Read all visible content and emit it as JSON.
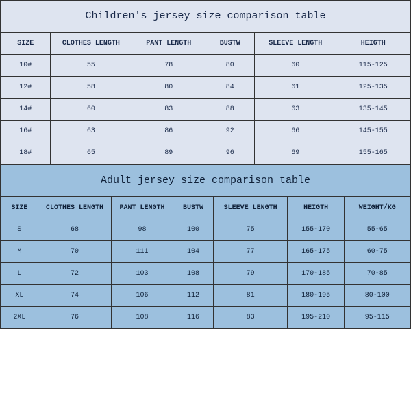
{
  "children": {
    "title": "Children's jersey size comparison table",
    "background_color": "#dee4f0",
    "text_color": "#1a2a4a",
    "columns": [
      "SIZE",
      "CLOTHES LENGTH",
      "PANT LENGTH",
      "BUSTW",
      "SLEEVE LENGTH",
      "HEIGTH"
    ],
    "col_widths_pct": [
      12,
      20,
      18,
      12,
      20,
      18
    ],
    "rows": [
      [
        "10#",
        "55",
        "78",
        "80",
        "60",
        "115-125"
      ],
      [
        "12#",
        "58",
        "80",
        "84",
        "61",
        "125-135"
      ],
      [
        "14#",
        "60",
        "83",
        "88",
        "63",
        "135-145"
      ],
      [
        "16#",
        "63",
        "86",
        "92",
        "66",
        "145-155"
      ],
      [
        "18#",
        "65",
        "89",
        "96",
        "69",
        "155-165"
      ]
    ]
  },
  "adult": {
    "title": "Adult jersey size comparison table",
    "background_color": "#9cc0de",
    "text_color": "#0f2038",
    "columns": [
      "SIZE",
      "CLOTHES LENGTH",
      "PANT LENGTH",
      "BUSTW",
      "SLEEVE LENGTH",
      "HEIGTH",
      "WEIGHT/KG"
    ],
    "col_widths_pct": [
      9,
      18,
      15,
      10,
      18,
      14,
      16
    ],
    "rows": [
      [
        "S",
        "68",
        "98",
        "100",
        "75",
        "155-170",
        "55-65"
      ],
      [
        "M",
        "70",
        "111",
        "104",
        "77",
        "165-175",
        "60-75"
      ],
      [
        "L",
        "72",
        "103",
        "108",
        "79",
        "170-185",
        "70-85"
      ],
      [
        "XL",
        "74",
        "106",
        "112",
        "81",
        "180-195",
        "80-100"
      ],
      [
        "2XL",
        "76",
        "108",
        "116",
        "83",
        "195-210",
        "95-115"
      ]
    ]
  },
  "border_color": "#333333",
  "font_family": "Courier New"
}
